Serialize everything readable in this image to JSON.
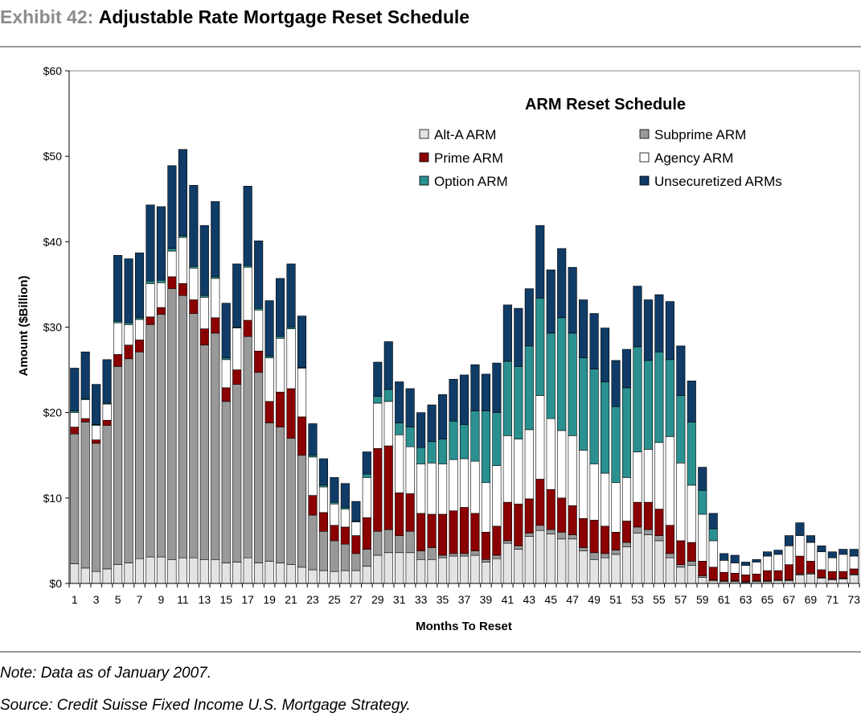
{
  "header": {
    "exhibit_label": "Exhibit 42:",
    "title": "Adjustable Rate Mortgage Reset Schedule"
  },
  "notes": {
    "note": "Note: Data as of January 2007.",
    "source": "Source: Credit Suisse Fixed Income U.S. Mortgage Strategy."
  },
  "chart_data": {
    "type": "bar",
    "stacked": true,
    "title": "ARM Reset Schedule",
    "xlabel": "Months To Reset",
    "ylabel": "Amount ($Billion)",
    "ylim": [
      0,
      60
    ],
    "y_ticks": [
      0,
      10,
      20,
      30,
      40,
      50,
      60
    ],
    "y_tick_labels": [
      "$0",
      "$10",
      "$20",
      "$30",
      "$40",
      "$50",
      "$60"
    ],
    "x_tick_labels_shown": [
      "1",
      "3",
      "5",
      "7",
      "9",
      "11",
      "13",
      "15",
      "17",
      "19",
      "21",
      "23",
      "25",
      "27",
      "29",
      "31",
      "33",
      "35",
      "37",
      "39",
      "41",
      "43",
      "45",
      "47",
      "49",
      "51",
      "53",
      "55",
      "57",
      "59",
      "61",
      "63",
      "65",
      "67",
      "69",
      "71",
      "73"
    ],
    "grid": false,
    "legend_placement": "top-right",
    "categories": [
      "1",
      "2",
      "3",
      "4",
      "5",
      "6",
      "7",
      "8",
      "9",
      "10",
      "11",
      "12",
      "13",
      "14",
      "15",
      "16",
      "17",
      "18",
      "19",
      "20",
      "21",
      "22",
      "23",
      "24",
      "25",
      "26",
      "27",
      "28",
      "29",
      "30",
      "31",
      "32",
      "33",
      "34",
      "35",
      "36",
      "37",
      "38",
      "39",
      "40",
      "41",
      "42",
      "43",
      "44",
      "45",
      "46",
      "47",
      "48",
      "49",
      "50",
      "51",
      "52",
      "53",
      "54",
      "55",
      "56",
      "57",
      "58",
      "59",
      "60",
      "61",
      "62",
      "63",
      "64",
      "65",
      "66",
      "67",
      "68",
      "69",
      "70",
      "71",
      "72",
      "73"
    ],
    "series": [
      {
        "name": "Alt-A ARM",
        "color": "#e3e3e3",
        "values": [
          2.3,
          1.8,
          1.4,
          1.7,
          2.2,
          2.4,
          2.9,
          3.1,
          3.1,
          2.8,
          3.0,
          3.0,
          2.8,
          2.8,
          2.4,
          2.5,
          3.0,
          2.4,
          2.6,
          2.4,
          2.2,
          1.9,
          1.6,
          1.5,
          1.4,
          1.5,
          1.5,
          2.0,
          3.3,
          3.6,
          3.6,
          3.6,
          2.8,
          2.8,
          3.0,
          3.2,
          3.2,
          3.3,
          2.5,
          2.9,
          4.7,
          4.0,
          5.5,
          6.2,
          5.8,
          5.2,
          5.2,
          3.8,
          2.8,
          3.0,
          3.4,
          4.3,
          5.9,
          5.7,
          5.0,
          3.0,
          1.9,
          2.1,
          0.7,
          0.3,
          0.2,
          0.2,
          0.1,
          0.2,
          0.2,
          0.3,
          0.3,
          1.0,
          1.1,
          0.6,
          0.4,
          0.5,
          1.0
        ]
      },
      {
        "name": "Subprime ARM",
        "color": "#999999",
        "values": [
          15.2,
          17.1,
          15.0,
          16.8,
          23.2,
          23.9,
          24.2,
          27.2,
          28.4,
          31.7,
          30.7,
          28.6,
          25.1,
          26.5,
          18.9,
          20.8,
          25.9,
          22.3,
          16.2,
          15.9,
          14.8,
          13.1,
          6.4,
          4.6,
          3.6,
          3.1,
          2.0,
          2.0,
          2.8,
          2.7,
          2.0,
          2.5,
          1.0,
          1.4,
          0.3,
          0.3,
          0.3,
          0.5,
          0.3,
          0.4,
          0.3,
          0.4,
          0.4,
          0.6,
          0.5,
          0.8,
          0.5,
          0.4,
          0.8,
          0.5,
          0.5,
          0.5,
          0.7,
          0.6,
          0.6,
          0.5,
          0.3,
          0.5,
          0.2,
          0.1,
          0.1,
          0.1,
          0.1,
          0.1,
          0.1,
          0.1,
          0.1,
          0.1,
          0.1,
          0.1,
          0.1,
          0.1,
          0.1
        ]
      },
      {
        "name": "Prime ARM",
        "color": "#8b0000",
        "values": [
          0.8,
          0.4,
          0.4,
          0.6,
          1.4,
          1.6,
          1.4,
          0.9,
          0.8,
          1.4,
          1.4,
          1.6,
          1.9,
          1.8,
          1.6,
          1.7,
          1.9,
          2.5,
          2.5,
          4.1,
          5.8,
          4.5,
          2.3,
          2.2,
          1.8,
          2.0,
          2.1,
          3.7,
          9.7,
          9.8,
          5.0,
          4.4,
          4.4,
          3.9,
          4.8,
          5.0,
          5.4,
          4.4,
          3.2,
          3.4,
          4.5,
          4.9,
          4.0,
          5.4,
          4.7,
          4.0,
          3.4,
          3.4,
          3.8,
          3.2,
          2.1,
          2.5,
          2.9,
          3.2,
          3.1,
          3.3,
          2.8,
          2.2,
          1.7,
          1.5,
          1.0,
          0.9,
          0.8,
          0.8,
          1.2,
          1.1,
          1.8,
          2.1,
          1.4,
          0.9,
          0.9,
          0.8,
          0.6
        ]
      },
      {
        "name": "Agency ARM",
        "color": "#ffffff",
        "values": [
          1.7,
          2.2,
          1.7,
          1.9,
          3.7,
          2.4,
          2.4,
          3.9,
          2.9,
          3.0,
          5.4,
          3.7,
          3.7,
          4.6,
          3.3,
          4.9,
          6.2,
          4.8,
          5.1,
          6.3,
          7.0,
          5.7,
          4.5,
          3.0,
          2.5,
          2.1,
          1.6,
          4.7,
          5.3,
          5.2,
          6.8,
          5.5,
          5.8,
          6.0,
          5.9,
          6.0,
          5.7,
          6.1,
          5.8,
          7.1,
          7.8,
          7.6,
          8.1,
          9.8,
          8.3,
          7.9,
          8.2,
          8.0,
          6.6,
          6.2,
          5.8,
          5.1,
          5.9,
          6.2,
          7.8,
          10.4,
          9.1,
          6.7,
          5.5,
          3.1,
          1.4,
          1.2,
          1.1,
          1.4,
          1.7,
          1.9,
          2.2,
          2.4,
          2.2,
          2.1,
          1.6,
          2.0,
          1.5
        ]
      },
      {
        "name": "Option ARM",
        "color": "#2a9090",
        "values": [
          0.2,
          0.1,
          0.1,
          0.1,
          0.2,
          0.2,
          0.2,
          0.3,
          0.3,
          0.3,
          0.2,
          0.2,
          0.2,
          0.2,
          0.2,
          0.1,
          0.2,
          0.2,
          0.2,
          0.2,
          0.2,
          0.1,
          0.2,
          0.2,
          0.2,
          0.2,
          0.1,
          0.4,
          0.8,
          1.4,
          1.4,
          2.3,
          1.9,
          2.5,
          2.9,
          4.5,
          4.0,
          5.9,
          8.4,
          6.2,
          8.7,
          8.5,
          9.8,
          11.4,
          10.0,
          13.2,
          12.0,
          10.8,
          11.1,
          10.7,
          8.9,
          10.5,
          12.3,
          10.4,
          10.6,
          9.0,
          7.9,
          7.4,
          2.8,
          1.4,
          0.0,
          0.0,
          0.0,
          0.0,
          0.0,
          0.0,
          0.0,
          0.0,
          0.0,
          0.0,
          0.0,
          0.0,
          0.0
        ]
      },
      {
        "name": "Unsecuretized ARMs",
        "color": "#0f3b66",
        "values": [
          5.0,
          5.5,
          4.7,
          5.1,
          7.7,
          7.5,
          7.6,
          8.9,
          8.6,
          9.7,
          10.1,
          9.5,
          8.2,
          8.8,
          6.4,
          7.4,
          9.3,
          7.9,
          6.5,
          6.8,
          7.4,
          6.0,
          3.7,
          3.1,
          2.9,
          2.8,
          2.3,
          2.6,
          4.0,
          5.6,
          4.8,
          4.5,
          4.1,
          4.3,
          5.2,
          4.9,
          5.8,
          5.4,
          4.3,
          5.8,
          6.6,
          6.8,
          6.7,
          8.5,
          7.4,
          8.1,
          7.7,
          6.8,
          6.5,
          6.3,
          5.4,
          4.5,
          7.1,
          7.1,
          6.7,
          6.8,
          5.8,
          4.8,
          2.7,
          1.8,
          0.8,
          0.9,
          0.4,
          0.3,
          0.5,
          0.5,
          1.2,
          1.5,
          0.8,
          0.7,
          0.7,
          0.6,
          0.8
        ]
      }
    ]
  }
}
